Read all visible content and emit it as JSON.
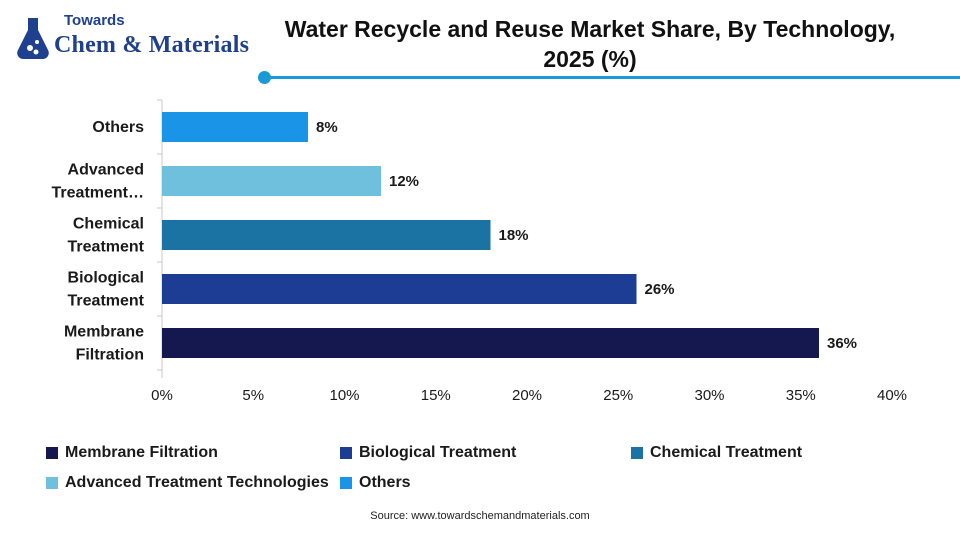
{
  "logo": {
    "line1": "Towards",
    "line2": "Chem & Materials"
  },
  "title": "Water Recycle and Reuse Market Share, By Technology, 2025 (%)",
  "source": "Source: www.towardschemandmaterials.com",
  "chart_data": {
    "type": "bar",
    "orientation": "horizontal",
    "title": "Water Recycle and Reuse Market Share, By Technology, 2025 (%)",
    "categories_display": [
      "Others",
      "Advanced Treatment…",
      "Chemical Treatment",
      "Biological Treatment",
      "Membrane Filtration"
    ],
    "categories": [
      "Others",
      "Advanced Treatment Technologies",
      "Chemical Treatment",
      "Biological Treatment",
      "Membrane Filtration"
    ],
    "values": [
      8,
      12,
      18,
      26,
      36
    ],
    "data_labels": [
      "8%",
      "12%",
      "18%",
      "26%",
      "36%"
    ],
    "colors": [
      "#1a94e6",
      "#6ec0dc",
      "#1a73a3",
      "#1d3c93",
      "#14184e"
    ],
    "xlim": [
      0,
      40
    ],
    "xticks": [
      0,
      5,
      10,
      15,
      20,
      25,
      30,
      35,
      40
    ],
    "xtick_labels": [
      "0%",
      "5%",
      "10%",
      "15%",
      "20%",
      "25%",
      "30%",
      "35%",
      "40%"
    ],
    "grid": false,
    "legend_position": "bottom",
    "legend": [
      {
        "label": "Membrane Filtration",
        "color": "#14184e"
      },
      {
        "label": "Biological Treatment",
        "color": "#1d3c93"
      },
      {
        "label": "Chemical Treatment",
        "color": "#1a73a3"
      },
      {
        "label": "Advanced Treatment Technologies",
        "color": "#6ec0dc"
      },
      {
        "label": "Others",
        "color": "#1a94e6"
      }
    ]
  }
}
